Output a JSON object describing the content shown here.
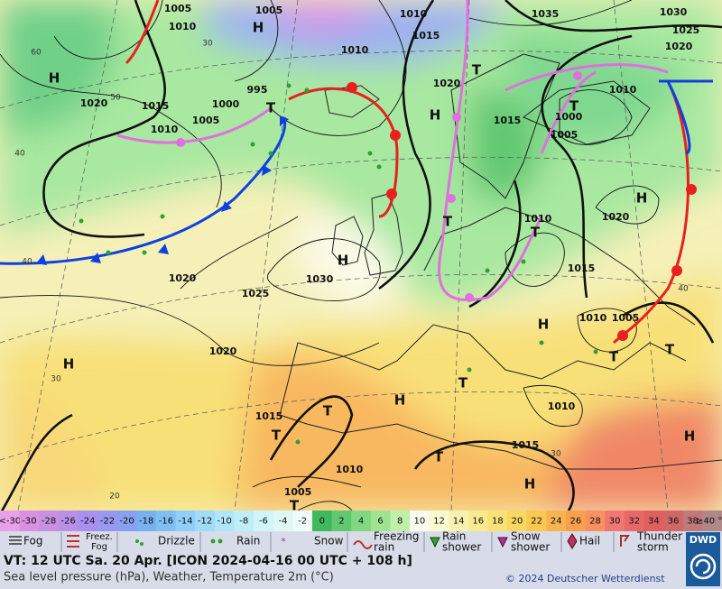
{
  "map": {
    "isobar_labels": [
      "1005",
      "1005",
      "1010",
      "1035",
      "1030",
      "1010",
      "1025",
      "1015",
      "1020",
      "1010",
      "995",
      "1020",
      "1010",
      "1020",
      "1015",
      "1000",
      "1005",
      "1010",
      "1015",
      "1000",
      "1005",
      "1010",
      "1020",
      "1015",
      "1020",
      "1030",
      "1025",
      "1010",
      "1005",
      "1020",
      "1010",
      "1015",
      "1015",
      "1010",
      "1005"
    ],
    "latitude_labels": [
      "60",
      "50",
      "40",
      "40",
      "30",
      "20",
      "30",
      "30",
      "40"
    ],
    "pressure_centers": [
      "H",
      "H",
      "H",
      "H",
      "H",
      "H",
      "H",
      "H",
      "H",
      "H",
      "T",
      "T",
      "T",
      "T",
      "T",
      "T",
      "T",
      "T",
      "T",
      "T",
      "T",
      "T"
    ]
  },
  "scale": {
    "labels": [
      "<-30",
      -30,
      -28,
      -26,
      -24,
      -22,
      -20,
      -18,
      -16,
      -14,
      -12,
      -10,
      -8,
      -6,
      -4,
      -2,
      0,
      2,
      4,
      6,
      8,
      10,
      12,
      14,
      16,
      18,
      20,
      22,
      24,
      26,
      28,
      30,
      32,
      34,
      36,
      38,
      "≥40 °C"
    ],
    "colors": [
      "#e8a0e8",
      "#d890e0",
      "#c890e0",
      "#b890e8",
      "#a890f0",
      "#9898f0",
      "#88a0f0",
      "#78b0f0",
      "#80c0f0",
      "#90d0f8",
      "#a0dcf8",
      "#b0e6f8",
      "#c0eef8",
      "#d0f6f8",
      "#e0f8f4",
      "#f0fcf8",
      "#40b860",
      "#60c870",
      "#80d880",
      "#a0e490",
      "#c0f0a8",
      "#fcfcf0",
      "#fafad0",
      "#f8f2b0",
      "#f8ea90",
      "#f8e278",
      "#f8d860",
      "#f8c850",
      "#f8b450",
      "#f8a050",
      "#f89060",
      "#f07870",
      "#e86868",
      "#e06060",
      "#d06868",
      "#c07878",
      "#b08888"
    ]
  },
  "legend": [
    "Fog",
    [
      "Freez.",
      "Fog"
    ],
    "Drizzle",
    "Rain",
    "Snow",
    [
      "Freezing",
      "rain"
    ],
    [
      "Rain",
      "shower"
    ],
    [
      "Snow",
      "shower"
    ],
    "Hail",
    [
      "Thunder",
      "storm"
    ]
  ],
  "footer": {
    "valid_time": "VT: 12 UTC Sa.  20 Apr. [ICON 2024-04-16  00 UTC + 108 h]",
    "description": "Sea level pressure (hPa), Weather, Temperature 2m (°C)",
    "copyright": "© 2024 Deutscher Wetterdienst",
    "logo": "DWD"
  }
}
